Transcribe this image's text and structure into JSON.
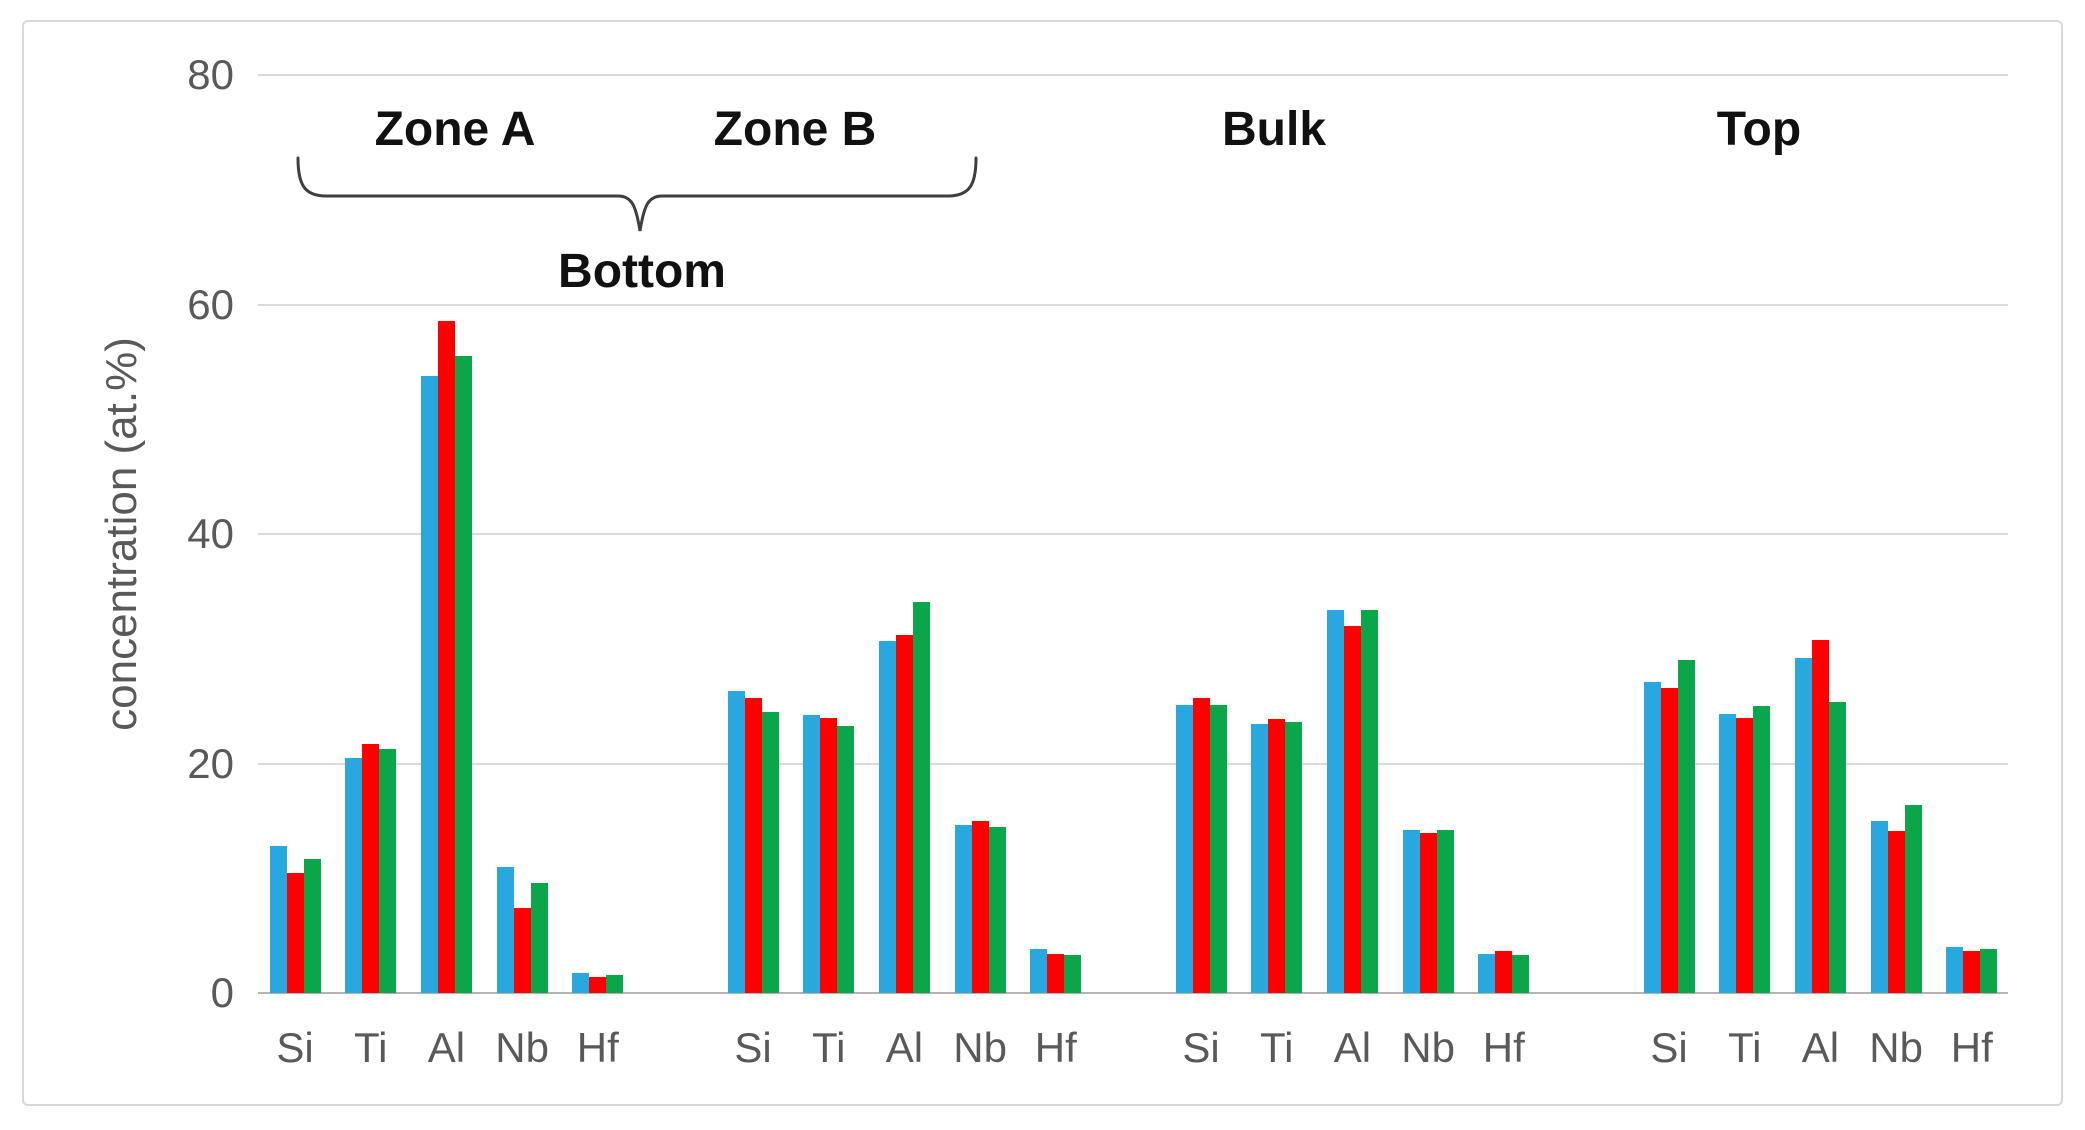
{
  "chart_data": {
    "type": "bar",
    "title": "",
    "ylabel": "concentration (at.%)",
    "xlabel": "",
    "ylim": [
      0,
      80
    ],
    "yticks": [
      "0",
      "20",
      "40",
      "60",
      "80"
    ],
    "grid": true,
    "legend_position": "none",
    "categories": [
      "Si",
      "Ti",
      "Al",
      "Nb",
      "Hf"
    ],
    "series_colors": [
      "#29a8e0",
      "#fe0000",
      "#0ba64a"
    ],
    "series_names": [
      "blue-series",
      "red-series",
      "green-series"
    ],
    "groups": [
      {
        "label": "Zone A",
        "series": [
          [
            12.8,
            20.5,
            53.8,
            11.0,
            1.7
          ],
          [
            10.5,
            21.7,
            58.6,
            7.4,
            1.4
          ],
          [
            11.7,
            21.3,
            55.5,
            9.6,
            1.6
          ]
        ]
      },
      {
        "label": "Zone B",
        "series": [
          [
            26.3,
            24.2,
            30.7,
            14.6,
            3.8
          ],
          [
            25.7,
            24.0,
            31.2,
            15.0,
            3.4
          ],
          [
            24.5,
            23.3,
            34.1,
            14.5,
            3.3
          ]
        ]
      },
      {
        "label": "Bulk",
        "series": [
          [
            25.1,
            23.4,
            33.4,
            14.2,
            3.4
          ],
          [
            25.7,
            23.9,
            32.0,
            13.9,
            3.7
          ],
          [
            25.1,
            23.6,
            33.4,
            14.2,
            3.3
          ]
        ]
      },
      {
        "label": "Top",
        "series": [
          [
            27.1,
            24.3,
            29.2,
            15.0,
            4.0
          ],
          [
            26.6,
            24.0,
            30.8,
            14.1,
            3.7
          ],
          [
            29.0,
            25.0,
            25.4,
            16.4,
            3.8
          ]
        ]
      }
    ],
    "bracket": {
      "label": "Bottom",
      "spans": [
        "Zone A",
        "Zone B"
      ]
    },
    "colors": {
      "gridline": "#d9d9d9",
      "axis_line": "#b3b3b3",
      "tick_text": "#595959",
      "label_text": "#111111",
      "frame_border": "#d8d8d8",
      "bracket_stroke": "#3f3f3f"
    }
  }
}
